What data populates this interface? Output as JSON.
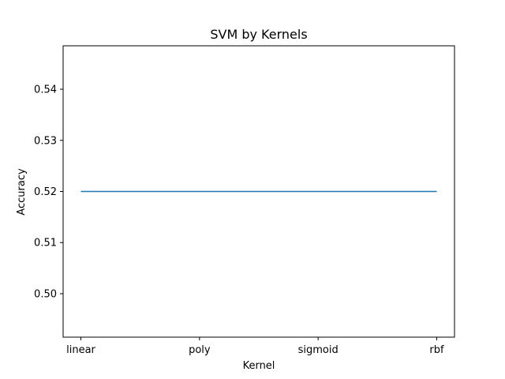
{
  "chart_data": {
    "type": "line",
    "title": "SVM by Kernels",
    "xlabel": "Kernel",
    "ylabel": "Accuracy",
    "categories": [
      "linear",
      "poly",
      "sigmoid",
      "rbf"
    ],
    "series": [
      {
        "values": [
          0.52,
          0.52,
          0.52,
          0.52
        ],
        "color": "#1f77b4"
      }
    ],
    "ylim": [
      0.4915,
      0.5485
    ],
    "yticks": [
      0.5,
      0.51,
      0.52,
      0.53,
      0.54
    ],
    "grid": false,
    "legend": "none"
  }
}
